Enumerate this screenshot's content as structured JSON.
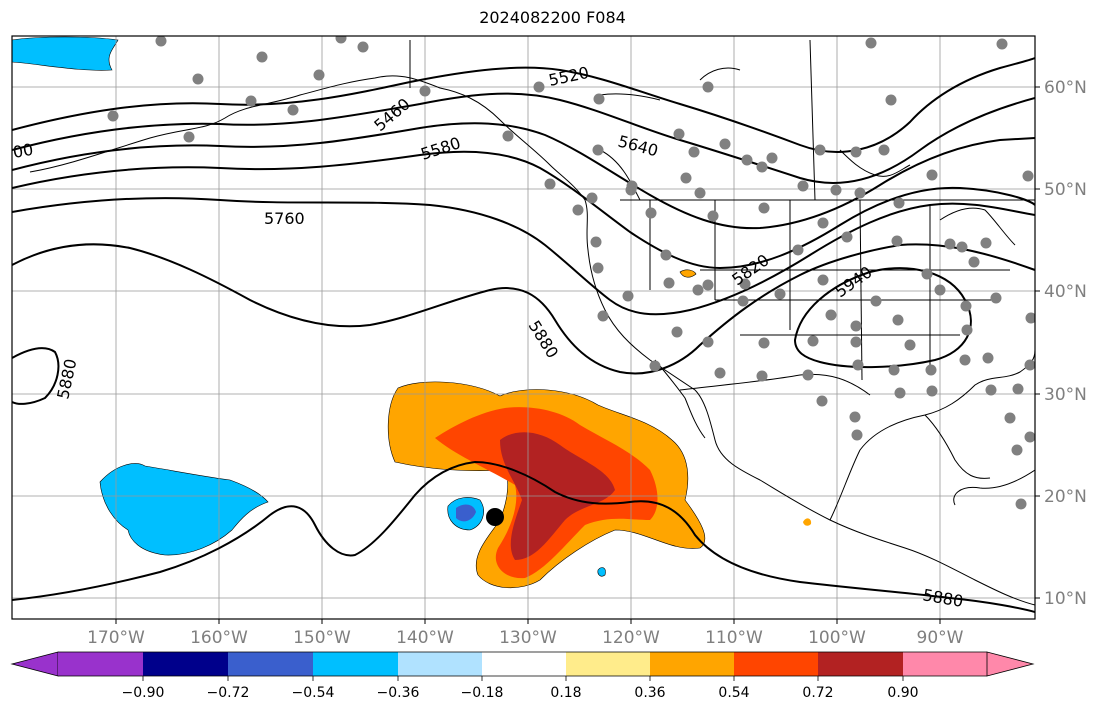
{
  "title": "2024082200 F084",
  "map": {
    "longitude_labels": [
      "170°W",
      "160°W",
      "150°W",
      "140°W",
      "130°W",
      "120°W",
      "110°W",
      "100°W",
      "90°W"
    ],
    "latitude_labels": [
      "60°N",
      "50°N",
      "40°N",
      "30°N",
      "20°N",
      "10°N"
    ],
    "contour_labels": [
      "5460",
      "5520",
      "5580",
      "5640",
      "5760",
      "5820",
      "5880",
      "5880",
      "5880",
      "5940",
      "00"
    ],
    "storm_marker": "black-dot",
    "station_marker_color": "#808080"
  },
  "colorbar": {
    "ticks": [
      "−0.90",
      "−0.72",
      "−0.54",
      "−0.36",
      "−0.18",
      "0.18",
      "0.36",
      "0.54",
      "0.72",
      "0.90"
    ],
    "colors": [
      "#9932cc",
      "#00008b",
      "#3a5fcd",
      "#00bfff",
      "#b0e2ff",
      "#ffffff",
      "#ffec8b",
      "#ffa500",
      "#ff4500",
      "#b22222",
      "#ff88aa"
    ]
  }
}
